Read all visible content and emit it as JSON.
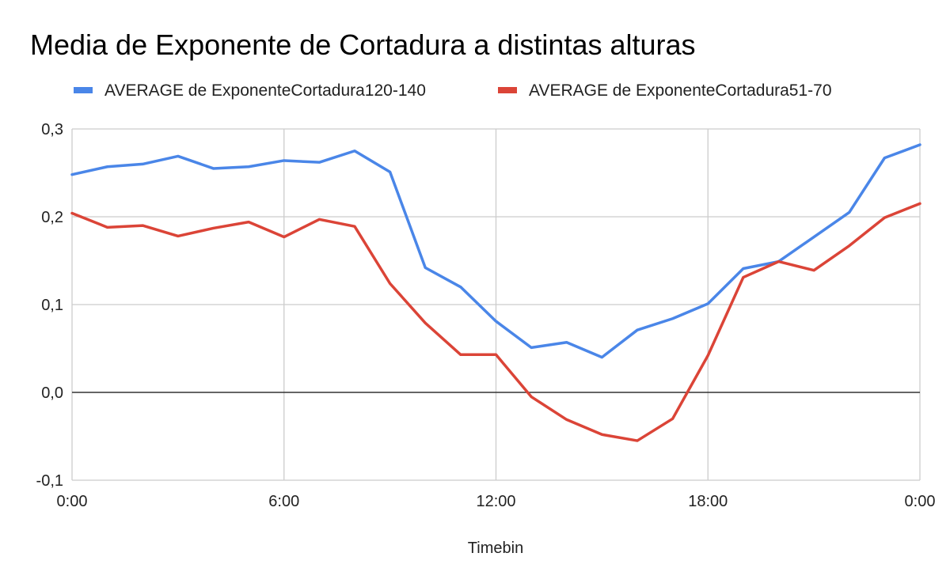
{
  "chart_data": {
    "type": "line",
    "title": "Media de Exponente de Cortadura a distintas alturas",
    "xlabel": "Timebin",
    "ylabel": "",
    "x_unit": "hours",
    "xlim": [
      0,
      24
    ],
    "ylim": [
      -0.1,
      0.3
    ],
    "x_ticks": [
      {
        "value": 0,
        "label": "0:00"
      },
      {
        "value": 6,
        "label": "6:00"
      },
      {
        "value": 12,
        "label": "12:00"
      },
      {
        "value": 18,
        "label": "18:00"
      },
      {
        "value": 24,
        "label": "0:00"
      }
    ],
    "y_ticks": [
      {
        "value": -0.1,
        "label": "-0,1"
      },
      {
        "value": 0,
        "label": "0,0"
      },
      {
        "value": 0.1,
        "label": "0,1"
      },
      {
        "value": 0.2,
        "label": "0,2"
      },
      {
        "value": 0.3,
        "label": "0,3"
      }
    ],
    "grid": true,
    "legend_position": "top-left",
    "x": [
      0,
      1,
      2,
      3,
      4,
      5,
      6,
      7,
      8,
      9,
      10,
      11,
      12,
      13,
      14,
      15,
      16,
      17,
      18,
      19,
      20,
      21,
      22,
      23,
      24
    ],
    "series": [
      {
        "name": "AVERAGE de ExponenteCortadura120-140",
        "color": "#4a86e8",
        "values": [
          0.248,
          0.257,
          0.26,
          0.269,
          0.255,
          0.257,
          0.264,
          0.262,
          0.275,
          0.251,
          0.142,
          0.12,
          0.081,
          0.051,
          0.057,
          0.04,
          0.071,
          0.084,
          0.101,
          0.141,
          0.149,
          0.177,
          0.205,
          0.267,
          0.282
        ]
      },
      {
        "name": "AVERAGE de ExponenteCortadura51-70",
        "color": "#db4437",
        "values": [
          0.204,
          0.188,
          0.19,
          0.178,
          0.187,
          0.194,
          0.177,
          0.197,
          0.189,
          0.124,
          0.079,
          0.043,
          0.043,
          -0.005,
          -0.031,
          -0.048,
          -0.055,
          -0.03,
          0.042,
          0.131,
          0.149,
          0.139,
          0.167,
          0.199,
          0.215
        ]
      }
    ]
  }
}
